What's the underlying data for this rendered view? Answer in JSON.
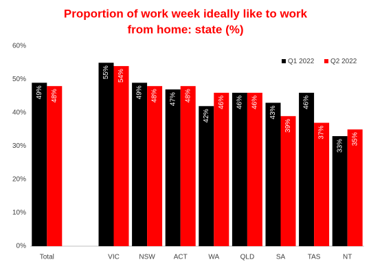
{
  "chart_data": {
    "type": "bar",
    "title": [
      "Proportion of work week ideally like to work",
      "from home: state (%)"
    ],
    "categories": [
      "Total",
      null,
      "VIC",
      "NSW",
      "ACT",
      "WA",
      "QLD",
      "SA",
      "TAS",
      "NT"
    ],
    "series": [
      {
        "name": "Q1 2022",
        "color": "#000000",
        "values": [
          49,
          null,
          55,
          49,
          47,
          42,
          46,
          43,
          46,
          33
        ],
        "value_labels": [
          "49%",
          null,
          "55%",
          "49%",
          "47%",
          "42%",
          "46%",
          "43%",
          "46%",
          "33%"
        ]
      },
      {
        "name": "Q2 2022",
        "color": "#ff0000",
        "values": [
          48,
          null,
          54,
          48,
          48,
          46,
          46,
          39,
          37,
          35
        ],
        "value_labels": [
          "48%",
          null,
          "54%",
          "48%",
          "48%",
          "46%",
          "46%",
          "39%",
          "37%",
          "35%"
        ]
      }
    ],
    "ylim": [
      0,
      60
    ],
    "yticks": [
      {
        "value": 0,
        "label": "0%"
      },
      {
        "value": 10,
        "label": "10%"
      },
      {
        "value": 20,
        "label": "20%"
      },
      {
        "value": 30,
        "label": "30%"
      },
      {
        "value": 40,
        "label": "40%"
      },
      {
        "value": 50,
        "label": "50%"
      },
      {
        "value": 60,
        "label": "60%"
      }
    ],
    "legend": "top-right"
  }
}
